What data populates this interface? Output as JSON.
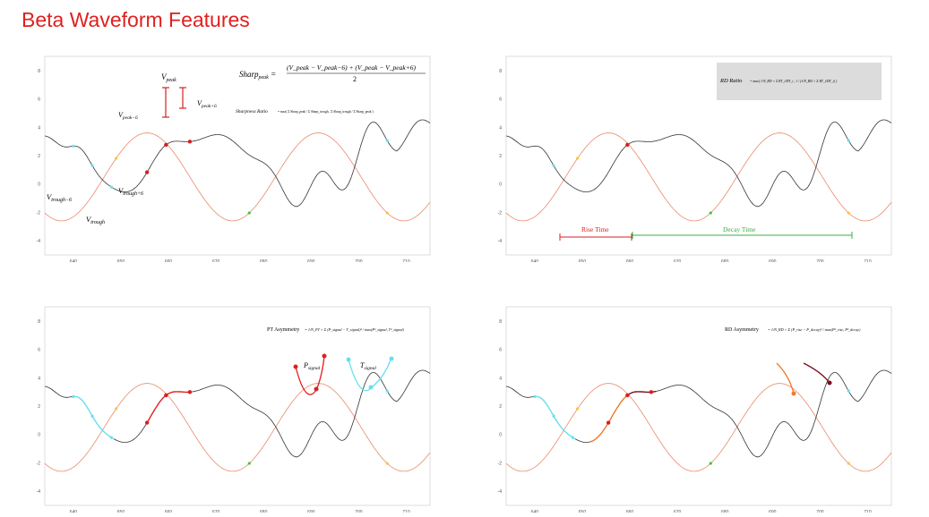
{
  "title": "Beta Waveform Features",
  "x_ticks": [
    "640",
    "650",
    "660",
    "670",
    "680",
    "690",
    "700",
    "710"
  ],
  "y_ticks": [
    "8",
    "6",
    "4",
    "2",
    "0",
    "-2",
    "-4"
  ],
  "colors": {
    "title": "#e01f1f",
    "signal": "#333333",
    "filtered": "#e98a6a",
    "peak": "#d62020",
    "trough": "#66e0f0",
    "zero_cross": "#f5c542",
    "midpoint": "#33cc33",
    "rise": "#f07a2a",
    "decay": "#7a0f1a",
    "rd_panel_bg": "#dcdcdc"
  },
  "panel1": {
    "labels": {
      "v_peak": "V",
      "v_peak_sub": "peak",
      "v_peak_m6": "V",
      "v_peak_m6_sub": "peak−6",
      "v_peak_p6": "V",
      "v_peak_p6_sub": "peak+6",
      "v_trough": "V",
      "v_trough_sub": "trough",
      "v_trough_m6": "V",
      "v_trough_m6_sub": "trough−6",
      "v_trough_p6": "V",
      "v_trough_p6_sub": "trough+6"
    },
    "formula_sharp": "Sharp_peak = ((V_peak − V_peak−6) + (V_peak − V_peak+6)) / 2",
    "formula_sharp_lhs": "Sharp",
    "formula_sharp_lhs_sub": "peak",
    "formula_sharp_num": "(V_peak − V_peak−6) + (V_peak − V_peak+6)",
    "formula_sharp_den": "2",
    "formula_ratio_lhs": "Sharpness Ratio",
    "formula_ratio_rhs": "= max( Σ Sharp_peak / Σ Sharp_trough , Σ Sharp_trough / Σ Sharp_peak )"
  },
  "panel2": {
    "formula_lhs": "RD Ratio",
    "formula_rhs": "= max( 1/N_RD × Σ RT_i/DT_i , 1 / (1/N_RD × Σ RT_i/DT_i) )",
    "rise_label": "Rise Time",
    "decay_label": "Decay Time"
  },
  "panel3": {
    "formula_lhs": "PT Asymmetry",
    "formula_rhs": "= 1/N_PT × Σ (P_signal − T_signal)² / max(P²_signal, T²_signal)",
    "p_label": "P",
    "p_label_sub": "signal",
    "t_label": "T",
    "t_label_sub": "signal"
  },
  "panel4": {
    "formula_lhs": "RD Asymmetry",
    "formula_rhs": "= 1/N_RD × Σ (P_rise − P_decay)² / max(P²_rise, P²_decay)"
  }
}
